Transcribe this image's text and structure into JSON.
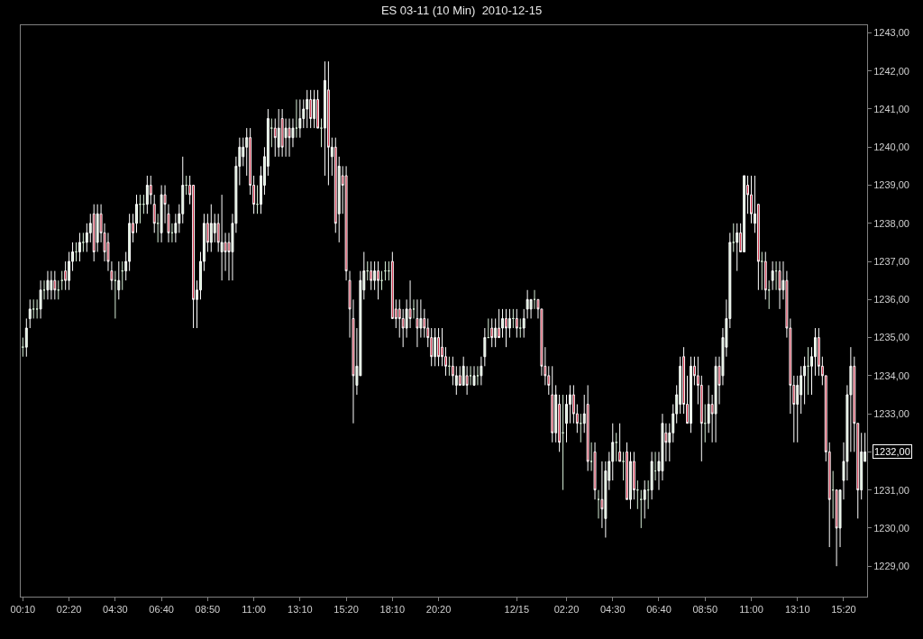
{
  "chart_data": {
    "type": "candlestick",
    "title": "ES 03-11 (10 Min)  2010-12-15",
    "categories": [
      "00:10",
      null,
      null,
      null,
      null,
      null,
      null,
      null,
      null,
      null,
      null,
      null,
      null,
      "02:20",
      null,
      null,
      null,
      null,
      null,
      null,
      null,
      null,
      null,
      null,
      null,
      null,
      "04:30",
      null,
      null,
      null,
      null,
      null,
      null,
      null,
      null,
      null,
      null,
      null,
      null,
      "06:40",
      null,
      null,
      null,
      null,
      null,
      null,
      null,
      null,
      null,
      null,
      null,
      null,
      "08:50",
      null,
      null,
      null,
      null,
      null,
      null,
      null,
      null,
      null,
      null,
      null,
      null,
      "11:00",
      null,
      null,
      null,
      null,
      null,
      null,
      null,
      null,
      null,
      null,
      null,
      null,
      "13:10",
      null,
      null,
      null,
      null,
      null,
      null,
      null,
      null,
      null,
      null,
      null,
      null,
      "15:20",
      null,
      null,
      null,
      null,
      null,
      null,
      null,
      null,
      null,
      null,
      null,
      null,
      "18:10",
      null,
      null,
      null,
      null,
      null,
      null,
      null,
      null,
      null,
      null,
      null,
      null,
      "20:20",
      null,
      null,
      null,
      null,
      null,
      null,
      null,
      null,
      null,
      null,
      null,
      null,
      null,
      null,
      null,
      null,
      null,
      null,
      null,
      null,
      null,
      "12/15",
      null,
      null,
      null,
      null,
      null,
      null,
      null,
      null,
      null,
      null,
      null,
      null,
      null,
      "02:20",
      null,
      null,
      null,
      null,
      null,
      null,
      null,
      null,
      null,
      null,
      null,
      null,
      "04:30",
      null,
      null,
      null,
      null,
      null,
      null,
      null,
      null,
      null,
      null,
      null,
      null,
      "06:40",
      null,
      null,
      null,
      null,
      null,
      null,
      null,
      null,
      null,
      null,
      null,
      null,
      "08:50",
      null,
      null,
      null,
      null,
      null,
      null,
      null,
      null,
      null,
      null,
      null,
      null,
      "11:00",
      null,
      null,
      null,
      null,
      null,
      null,
      null,
      null,
      null,
      null,
      null,
      null,
      "13:10",
      null,
      null,
      null,
      null,
      null,
      null,
      null,
      null,
      null,
      null,
      null,
      null,
      "15:20",
      null,
      null,
      null,
      null,
      null,
      null
    ],
    "ohlc": [
      [
        1234.75,
        1235.0,
        1234.5,
        1234.75
      ],
      [
        1234.75,
        1235.5,
        1234.5,
        1235.25
      ],
      [
        1235.5,
        1236.0,
        1235.25,
        1235.75
      ],
      [
        1235.75,
        1236.0,
        1235.5,
        1235.75
      ],
      [
        1235.75,
        1236.0,
        1235.5,
        1235.75
      ],
      [
        1235.75,
        1236.5,
        1235.5,
        1236.25
      ],
      [
        1236.25,
        1236.5,
        1236.0,
        1236.25
      ],
      [
        1236.25,
        1236.75,
        1236.0,
        1236.5
      ],
      [
        1236.25,
        1236.75,
        1236.0,
        1236.5
      ],
      [
        1236.5,
        1236.75,
        1236.0,
        1236.25
      ],
      [
        1236.25,
        1236.5,
        1236.0,
        1236.25
      ],
      [
        1236.5,
        1236.75,
        1236.25,
        1236.5
      ],
      [
        1236.75,
        1237.0,
        1236.25,
        1236.5
      ],
      [
        1236.5,
        1237.25,
        1236.25,
        1237.0
      ],
      [
        1237.0,
        1237.5,
        1236.75,
        1237.25
      ],
      [
        1237.25,
        1237.5,
        1237.0,
        1237.25
      ],
      [
        1237.25,
        1237.75,
        1237.0,
        1237.5
      ],
      [
        1237.5,
        1237.75,
        1237.25,
        1237.5
      ],
      [
        1237.5,
        1238.0,
        1237.25,
        1237.75
      ],
      [
        1237.75,
        1238.25,
        1237.5,
        1238.0
      ],
      [
        1238.25,
        1238.5,
        1237.0,
        1237.25
      ],
      [
        1237.5,
        1238.5,
        1237.25,
        1238.25
      ],
      [
        1238.25,
        1238.5,
        1237.5,
        1237.75
      ],
      [
        1237.75,
        1238.0,
        1237.0,
        1237.25
      ],
      [
        1237.5,
        1237.75,
        1236.75,
        1237.0
      ],
      [
        1236.75,
        1237.0,
        1236.25,
        1236.5
      ],
      [
        1236.5,
        1236.75,
        1235.5,
        1236.5
      ],
      [
        1236.25,
        1237.0,
        1236.0,
        1236.5
      ],
      [
        1236.75,
        1237.0,
        1236.25,
        1236.75
      ],
      [
        1236.75,
        1237.25,
        1236.5,
        1237.0
      ],
      [
        1237.0,
        1238.25,
        1236.75,
        1238.0
      ],
      [
        1238.0,
        1238.25,
        1237.5,
        1237.75
      ],
      [
        1238.0,
        1238.75,
        1237.75,
        1238.5
      ],
      [
        1238.5,
        1238.75,
        1238.0,
        1238.5
      ],
      [
        1238.5,
        1238.75,
        1238.25,
        1238.5
      ],
      [
        1238.5,
        1239.25,
        1238.25,
        1239.0
      ],
      [
        1239.0,
        1239.25,
        1238.5,
        1238.75
      ],
      [
        1238.5,
        1238.75,
        1237.75,
        1238.0
      ],
      [
        1238.0,
        1238.25,
        1237.5,
        1238.0
      ],
      [
        1237.75,
        1239.0,
        1237.5,
        1238.75
      ],
      [
        1238.75,
        1239.0,
        1238.0,
        1238.5
      ],
      [
        1238.25,
        1238.5,
        1237.5,
        1237.75
      ],
      [
        1237.75,
        1238.0,
        1237.5,
        1237.75
      ],
      [
        1237.75,
        1238.25,
        1237.5,
        1238.0
      ],
      [
        1238.0,
        1238.5,
        1237.75,
        1238.25
      ],
      [
        1238.25,
        1239.75,
        1238.0,
        1239.0
      ],
      [
        1239.0,
        1239.25,
        1238.75,
        1239.0
      ],
      [
        1239.0,
        1239.25,
        1238.5,
        1238.75
      ],
      [
        1239.0,
        1239.0,
        1235.25,
        1236.0
      ],
      [
        1236.0,
        1236.5,
        1235.25,
        1236.25
      ],
      [
        1236.25,
        1237.25,
        1236.0,
        1237.0
      ],
      [
        1237.0,
        1238.25,
        1236.75,
        1238.0
      ],
      [
        1238.0,
        1238.25,
        1237.25,
        1237.5
      ],
      [
        1237.5,
        1238.5,
        1237.25,
        1238.0
      ],
      [
        1237.75,
        1238.25,
        1237.5,
        1238.0
      ],
      [
        1238.0,
        1238.25,
        1237.25,
        1237.5
      ],
      [
        1237.25,
        1238.75,
        1236.5,
        1237.5
      ],
      [
        1237.5,
        1237.75,
        1236.75,
        1237.25
      ],
      [
        1237.5,
        1237.75,
        1236.5,
        1237.25
      ],
      [
        1237.25,
        1238.25,
        1236.5,
        1238.0
      ],
      [
        1238.0,
        1239.75,
        1237.75,
        1239.5
      ],
      [
        1239.5,
        1240.25,
        1239.0,
        1240.0
      ],
      [
        1239.75,
        1240.25,
        1239.5,
        1240.0
      ],
      [
        1240.0,
        1240.5,
        1239.25,
        1240.25
      ],
      [
        1240.25,
        1240.5,
        1238.75,
        1239.0
      ],
      [
        1239.0,
        1239.25,
        1238.25,
        1238.5
      ],
      [
        1238.5,
        1239.0,
        1238.25,
        1238.5
      ],
      [
        1238.5,
        1239.5,
        1238.25,
        1239.25
      ],
      [
        1239.0,
        1240.0,
        1238.75,
        1239.75
      ],
      [
        1239.5,
        1241.0,
        1239.25,
        1240.75
      ],
      [
        1240.5,
        1240.75,
        1240.0,
        1240.5
      ],
      [
        1240.5,
        1240.75,
        1239.75,
        1240.25
      ],
      [
        1240.0,
        1241.0,
        1239.75,
        1240.5
      ],
      [
        1240.75,
        1241.0,
        1239.75,
        1240.0
      ],
      [
        1240.25,
        1240.75,
        1239.75,
        1240.5
      ],
      [
        1240.5,
        1240.75,
        1239.75,
        1240.25
      ],
      [
        1240.25,
        1240.75,
        1240.0,
        1240.5
      ],
      [
        1240.5,
        1241.25,
        1240.25,
        1240.5
      ],
      [
        1240.5,
        1241.25,
        1240.25,
        1240.75
      ],
      [
        1240.75,
        1241.25,
        1240.5,
        1241.0
      ],
      [
        1241.0,
        1241.5,
        1240.5,
        1241.25
      ],
      [
        1241.25,
        1241.5,
        1240.5,
        1240.75
      ],
      [
        1240.75,
        1241.5,
        1240.5,
        1241.25
      ],
      [
        1241.25,
        1241.5,
        1240.5,
        1240.5
      ],
      [
        1240.5,
        1240.75,
        1240.0,
        1240.5
      ],
      [
        1240.5,
        1242.25,
        1239.25,
        1241.75
      ],
      [
        1241.5,
        1242.25,
        1239.0,
        1240.0
      ],
      [
        1239.75,
        1240.25,
        1239.25,
        1240.0
      ],
      [
        1240.0,
        1240.25,
        1237.75,
        1238.0
      ],
      [
        1238.25,
        1239.75,
        1237.5,
        1239.5
      ],
      [
        1239.25,
        1239.5,
        1238.25,
        1239.0
      ],
      [
        1239.25,
        1239.5,
        1236.5,
        1236.75
      ],
      [
        1236.5,
        1236.75,
        1235.0,
        1235.75
      ],
      [
        1235.5,
        1236.0,
        1232.75,
        1234.0
      ],
      [
        1233.75,
        1235.25,
        1233.5,
        1234.25
      ],
      [
        1234.0,
        1236.75,
        1234.0,
        1236.5
      ],
      [
        1236.25,
        1237.25,
        1236.0,
        1236.75
      ],
      [
        1236.75,
        1237.0,
        1236.5,
        1236.75
      ],
      [
        1236.75,
        1237.0,
        1236.25,
        1236.5
      ],
      [
        1236.5,
        1237.0,
        1236.25,
        1236.75
      ],
      [
        1236.75,
        1237.0,
        1236.0,
        1236.5
      ],
      [
        1236.5,
        1236.75,
        1236.25,
        1236.5
      ],
      [
        1236.75,
        1237.0,
        1236.5,
        1236.75
      ],
      [
        1236.75,
        1237.0,
        1236.5,
        1236.75
      ],
      [
        1237.0,
        1237.25,
        1235.5,
        1235.5
      ],
      [
        1235.75,
        1236.0,
        1235.25,
        1235.5
      ],
      [
        1235.75,
        1236.0,
        1235.0,
        1235.5
      ],
      [
        1235.5,
        1235.75,
        1234.75,
        1235.25
      ],
      [
        1235.25,
        1236.0,
        1235.0,
        1235.75
      ],
      [
        1235.75,
        1236.5,
        1235.25,
        1235.5
      ],
      [
        1235.75,
        1236.0,
        1235.5,
        1235.75
      ],
      [
        1235.5,
        1236.0,
        1234.75,
        1235.25
      ],
      [
        1235.25,
        1236.0,
        1235.0,
        1235.5
      ],
      [
        1235.5,
        1235.75,
        1235.0,
        1235.25
      ],
      [
        1235.25,
        1235.5,
        1234.75,
        1235.0
      ],
      [
        1235.0,
        1235.25,
        1234.25,
        1234.5
      ],
      [
        1234.5,
        1235.25,
        1234.25,
        1235.0
      ],
      [
        1235.0,
        1235.25,
        1234.25,
        1234.5
      ],
      [
        1234.75,
        1235.25,
        1234.25,
        1234.5
      ],
      [
        1234.5,
        1234.75,
        1234.0,
        1234.25
      ],
      [
        1234.25,
        1234.5,
        1234.0,
        1234.25
      ],
      [
        1234.25,
        1234.5,
        1233.75,
        1234.0
      ],
      [
        1233.75,
        1234.25,
        1233.5,
        1234.0
      ],
      [
        1234.0,
        1234.25,
        1233.75,
        1233.75
      ],
      [
        1233.75,
        1234.5,
        1233.75,
        1234.25
      ],
      [
        1234.0,
        1234.25,
        1233.5,
        1233.75
      ],
      [
        1234.0,
        1234.25,
        1233.75,
        1234.0
      ],
      [
        1233.75,
        1234.25,
        1233.75,
        1234.0
      ],
      [
        1234.0,
        1234.25,
        1233.75,
        1234.0
      ],
      [
        1234.0,
        1234.5,
        1233.75,
        1234.25
      ],
      [
        1234.5,
        1235.25,
        1234.25,
        1235.0
      ],
      [
        1235.0,
        1235.5,
        1235.0,
        1235.0
      ],
      [
        1235.25,
        1235.5,
        1234.75,
        1235.0
      ],
      [
        1235.0,
        1235.5,
        1234.75,
        1235.25
      ],
      [
        1235.25,
        1235.75,
        1235.0,
        1235.0
      ],
      [
        1235.25,
        1235.75,
        1235.0,
        1235.5
      ],
      [
        1235.5,
        1235.75,
        1234.75,
        1235.25
      ],
      [
        1235.25,
        1235.75,
        1235.0,
        1235.5
      ],
      [
        1235.5,
        1235.75,
        1235.25,
        1235.5
      ],
      [
        1235.5,
        1235.75,
        1235.0,
        1235.25
      ],
      [
        1235.25,
        1235.5,
        1235.0,
        1235.25
      ],
      [
        1235.25,
        1235.75,
        1235.0,
        1235.5
      ],
      [
        1235.75,
        1236.25,
        1235.5,
        1236.0
      ],
      [
        1235.75,
        1236.0,
        1235.5,
        1236.0
      ],
      [
        1236.0,
        1236.25,
        1235.75,
        1236.0
      ],
      [
        1236.0,
        1236.0,
        1235.5,
        1235.75
      ],
      [
        1235.75,
        1235.75,
        1234.0,
        1234.25
      ],
      [
        1234.25,
        1234.75,
        1233.75,
        1234.0
      ],
      [
        1234.0,
        1234.25,
        1233.5,
        1233.75
      ],
      [
        1233.5,
        1234.25,
        1232.25,
        1232.5
      ],
      [
        1232.5,
        1233.75,
        1232.25,
        1233.5
      ],
      [
        1233.25,
        1233.5,
        1232.0,
        1232.25
      ],
      [
        1232.5,
        1233.5,
        1231.0,
        1232.5
      ],
      [
        1232.75,
        1233.5,
        1232.25,
        1233.25
      ],
      [
        1233.25,
        1233.75,
        1232.75,
        1233.5
      ],
      [
        1233.5,
        1233.75,
        1232.75,
        1233.0
      ],
      [
        1233.0,
        1233.25,
        1232.5,
        1232.75
      ],
      [
        1232.75,
        1233.0,
        1232.25,
        1232.75
      ],
      [
        1232.75,
        1233.5,
        1232.5,
        1233.0
      ],
      [
        1233.25,
        1233.75,
        1231.5,
        1231.75
      ],
      [
        1231.75,
        1232.25,
        1231.5,
        1231.75
      ],
      [
        1232.0,
        1232.25,
        1230.75,
        1231.0
      ],
      [
        1230.75,
        1231.0,
        1230.25,
        1230.75
      ],
      [
        1230.75,
        1231.75,
        1230.0,
        1230.5
      ],
      [
        1230.25,
        1231.75,
        1229.75,
        1231.5
      ],
      [
        1231.25,
        1232.0,
        1231.0,
        1231.75
      ],
      [
        1231.75,
        1232.75,
        1231.25,
        1232.25
      ],
      [
        1232.25,
        1232.5,
        1231.75,
        1232.25
      ],
      [
        1232.0,
        1232.75,
        1231.75,
        1231.75
      ],
      [
        1231.75,
        1232.0,
        1231.25,
        1231.75
      ],
      [
        1232.0,
        1232.25,
        1230.75,
        1230.75
      ],
      [
        1230.75,
        1232.0,
        1230.5,
        1231.75
      ],
      [
        1231.75,
        1232.0,
        1230.75,
        1231.0
      ],
      [
        1231.0,
        1231.25,
        1230.5,
        1231.0
      ],
      [
        1230.75,
        1231.0,
        1230.0,
        1230.75
      ],
      [
        1230.75,
        1231.25,
        1230.25,
        1231.0
      ],
      [
        1231.0,
        1231.25,
        1230.5,
        1231.0
      ],
      [
        1231.0,
        1232.0,
        1230.75,
        1231.75
      ],
      [
        1231.5,
        1232.0,
        1231.25,
        1231.5
      ],
      [
        1231.5,
        1232.0,
        1231.0,
        1231.75
      ],
      [
        1231.5,
        1233.0,
        1231.25,
        1232.75
      ],
      [
        1232.5,
        1232.75,
        1231.75,
        1232.25
      ],
      [
        1232.25,
        1232.75,
        1231.75,
        1232.5
      ],
      [
        1232.5,
        1233.25,
        1232.25,
        1233.0
      ],
      [
        1233.0,
        1233.75,
        1232.75,
        1233.5
      ],
      [
        1233.25,
        1234.5,
        1233.0,
        1234.25
      ],
      [
        1234.5,
        1234.75,
        1233.0,
        1233.25
      ],
      [
        1233.25,
        1234.0,
        1232.75,
        1232.75
      ],
      [
        1232.75,
        1234.5,
        1232.5,
        1234.25
      ],
      [
        1234.25,
        1234.5,
        1233.75,
        1234.0
      ],
      [
        1234.0,
        1234.5,
        1233.25,
        1233.75
      ],
      [
        1233.75,
        1234.0,
        1231.75,
        1232.75
      ],
      [
        1232.75,
        1233.25,
        1232.25,
        1232.75
      ],
      [
        1232.75,
        1233.75,
        1232.5,
        1233.25
      ],
      [
        1233.25,
        1233.5,
        1232.25,
        1233.0
      ],
      [
        1233.0,
        1234.5,
        1232.25,
        1234.25
      ],
      [
        1234.25,
        1234.5,
        1233.25,
        1233.75
      ],
      [
        1234.0,
        1235.25,
        1233.75,
        1235.0
      ],
      [
        1234.75,
        1236.0,
        1234.5,
        1235.5
      ],
      [
        1235.5,
        1237.75,
        1235.25,
        1237.5
      ],
      [
        1237.5,
        1238.0,
        1237.25,
        1237.5
      ],
      [
        1237.5,
        1238.0,
        1236.75,
        1237.75
      ],
      [
        1237.75,
        1238.0,
        1237.25,
        1237.25
      ],
      [
        1237.25,
        1239.25,
        1237.25,
        1239.25
      ],
      [
        1239.0,
        1239.25,
        1238.25,
        1238.75
      ],
      [
        1238.75,
        1239.25,
        1238.0,
        1238.25
      ],
      [
        1238.0,
        1239.25,
        1237.75,
        1238.25
      ],
      [
        1238.5,
        1238.5,
        1236.25,
        1237.0
      ],
      [
        1237.0,
        1237.25,
        1236.25,
        1237.0
      ],
      [
        1237.0,
        1237.25,
        1236.0,
        1236.25
      ],
      [
        1236.25,
        1236.5,
        1235.75,
        1236.25
      ],
      [
        1236.5,
        1237.0,
        1236.25,
        1236.75
      ],
      [
        1236.75,
        1237.0,
        1236.25,
        1236.75
      ],
      [
        1236.75,
        1237.0,
        1235.75,
        1236.25
      ],
      [
        1236.25,
        1237.0,
        1236.0,
        1236.5
      ],
      [
        1236.5,
        1236.75,
        1235.0,
        1235.25
      ],
      [
        1235.25,
        1235.5,
        1233.0,
        1233.75
      ],
      [
        1233.75,
        1234.0,
        1232.25,
        1233.25
      ],
      [
        1233.25,
        1234.0,
        1232.25,
        1233.75
      ],
      [
        1233.5,
        1234.25,
        1233.0,
        1234.0
      ],
      [
        1234.0,
        1234.5,
        1233.25,
        1234.25
      ],
      [
        1234.25,
        1234.75,
        1233.5,
        1234.25
      ],
      [
        1234.25,
        1234.75,
        1233.5,
        1234.5
      ],
      [
        1234.5,
        1235.25,
        1234.0,
        1235.0
      ],
      [
        1235.0,
        1235.25,
        1234.0,
        1234.25
      ],
      [
        1234.25,
        1234.5,
        1233.75,
        1234.0
      ],
      [
        1234.0,
        1234.0,
        1231.75,
        1232.0
      ],
      [
        1232.0,
        1232.25,
        1229.5,
        1230.75
      ],
      [
        1231.0,
        1231.5,
        1230.25,
        1231.0
      ],
      [
        1231.0,
        1231.0,
        1229.0,
        1230.0
      ],
      [
        1230.0,
        1231.0,
        1229.5,
        1231.0
      ],
      [
        1231.25,
        1232.25,
        1230.75,
        1231.75
      ],
      [
        1231.75,
        1233.75,
        1231.25,
        1233.5
      ],
      [
        1233.5,
        1234.75,
        1232.0,
        1234.25
      ],
      [
        1234.25,
        1234.5,
        1232.0,
        1232.75
      ],
      [
        1232.75,
        1232.75,
        1230.25,
        1231.0
      ],
      [
        1231.0,
        1232.5,
        1230.75,
        1232.0
      ],
      [
        1231.75,
        1232.5,
        1231.75,
        1232.0
      ]
    ],
    "colors": [
      "#d6eed6",
      "#d6eed6",
      "#d6eed6",
      "#d6eed6",
      "#d6eed6",
      "#d6eed6",
      "#d6eed6",
      "#d6eed6",
      "#d6eed6",
      "#c8102e",
      "#d6eed6",
      "#d6eed6",
      "#c8102e",
      "#d6eed6",
      "#d6eed6",
      "#d6eed6",
      "#d6eed6",
      "#d6eed6",
      "#d6eed6",
      "#d6eed6",
      "#c8102e",
      "#d6eed6",
      "#c8102e",
      "#c8102e",
      "#c8102e",
      "#c8102e",
      "#d6eed6",
      "#d6eed6",
      "#d6eed6",
      "#d6eed6",
      "#d6eed6",
      "#c8102e",
      "#d6eed6",
      "#d6eed6",
      "#d6eed6",
      "#d6eed6",
      "#c8102e",
      "#c8102e",
      "#d6eed6",
      "#d6eed6",
      "#c8102e",
      "#c8102e",
      "#d6eed6",
      "#d6eed6",
      "#d6eed6",
      "#d6eed6",
      "#d6eed6",
      "#c8102e",
      "#c8102e",
      "#d6eed6",
      "#d6eed6",
      "#d6eed6",
      "#c8102e",
      "#d6eed6",
      "#d6eed6",
      "#c8102e",
      "#d6eed6",
      "#c8102e",
      "#c8102e",
      "#d6eed6",
      "#d6eed6",
      "#d6eed6",
      "#d6eed6",
      "#d6eed6",
      "#c8102e",
      "#c8102e",
      "#d6eed6",
      "#d6eed6",
      "#d6eed6",
      "#d6eed6",
      "#d6eed6",
      "#c8102e",
      "#d6eed6",
      "#c8102e",
      "#d6eed6",
      "#c8102e",
      "#d6eed6",
      "#d6eed6",
      "#d6eed6",
      "#d6eed6",
      "#d6eed6",
      "#c8102e",
      "#d6eed6",
      "#c8102e",
      "#d6eed6",
      "#d6eed6",
      "#c8102e",
      "#d6eed6",
      "#c8102e",
      "#d6eed6",
      "#c8102e",
      "#c8102e",
      "#c8102e",
      "#c8102e",
      "#d6eed6",
      "#d6eed6",
      "#d6eed6",
      "#d6eed6",
      "#c8102e",
      "#d6eed6",
      "#c8102e",
      "#d6eed6",
      "#d6eed6",
      "#d6eed6",
      "#c8102e",
      "#c8102e",
      "#c8102e",
      "#c8102e",
      "#d6eed6",
      "#c8102e",
      "#d6eed6",
      "#c8102e",
      "#d6eed6",
      "#c8102e",
      "#c8102e",
      "#c8102e",
      "#d6eed6",
      "#c8102e",
      "#c8102e",
      "#c8102e",
      "#d6eed6",
      "#c8102e",
      "#d6eed6",
      "#c8102e",
      "#d6eed6",
      "#c8102e",
      "#d6eed6",
      "#d6eed6",
      "#d6eed6",
      "#d6eed6",
      "#d6eed6",
      "#d6eed6",
      "#c8102e",
      "#d6eed6",
      "#c8102e",
      "#d6eed6",
      "#c8102e",
      "#d6eed6",
      "#d6eed6",
      "#c8102e",
      "#d6eed6",
      "#d6eed6",
      "#d6eed6",
      "#d6eed6",
      "#d6eed6",
      "#c8102e",
      "#c8102e",
      "#c8102e",
      "#c8102e",
      "#c8102e",
      "#d6eed6",
      "#c8102e",
      "#d6eed6",
      "#d6eed6",
      "#d6eed6",
      "#c8102e",
      "#c8102e",
      "#d6eed6",
      "#d6eed6",
      "#c8102e",
      "#d6eed6",
      "#c8102e",
      "#d6eed6",
      "#c8102e",
      "#d6eed6",
      "#d6eed6",
      "#d6eed6",
      "#d6eed6",
      "#c8102e",
      "#d6eed6",
      "#c8102e",
      "#d6eed6",
      "#c8102e",
      "#d6eed6",
      "#d6eed6",
      "#d6eed6",
      "#d6eed6",
      "#d6eed6",
      "#d6eed6",
      "#d6eed6",
      "#d6eed6",
      "#c8102e",
      "#d6eed6",
      "#d6eed6",
      "#d6eed6",
      "#d6eed6",
      "#c8102e",
      "#c8102e",
      "#d6eed6",
      "#c8102e",
      "#c8102e",
      "#c8102e",
      "#d6eed6",
      "#d6eed6",
      "#c8102e",
      "#d6eed6",
      "#c8102e",
      "#d6eed6",
      "#d6eed6",
      "#d6eed6",
      "#d6eed6",
      "#d6eed6",
      "#c8102e",
      "#d6eed6",
      "#c8102e",
      "#c8102e",
      "#d6eed6",
      "#c8102e",
      "#d6eed6",
      "#c8102e",
      "#d6eed6",
      "#d6eed6",
      "#d6eed6",
      "#c8102e",
      "#d6eed6",
      "#c8102e",
      "#c8102e",
      "#c8102e",
      "#d6eed6",
      "#d6eed6",
      "#d6eed6",
      "#d6eed6",
      "#d6eed6",
      "#d6eed6",
      "#c8102e",
      "#c8102e",
      "#c8102e",
      "#c8102e",
      "#d6eed6",
      "#c8102e",
      "#d6eed6",
      "#d6eed6",
      "#d6eed6",
      "#d6eed6",
      "#c8102e",
      "#c8102e",
      "#d6eed6",
      "#d6eed6"
    ],
    "ylim": [
      1228.2,
      1243.2
    ],
    "yticks": [
      {
        "value": 1229,
        "label": "1229,00"
      },
      {
        "value": 1230,
        "label": "1230,00"
      },
      {
        "value": 1231,
        "label": "1231,00"
      },
      {
        "value": 1232,
        "label": null
      },
      {
        "value": 1233,
        "label": "1233,00"
      },
      {
        "value": 1234,
        "label": "1234,00"
      },
      {
        "value": 1235,
        "label": "1235,00"
      },
      {
        "value": 1236,
        "label": "1236,00"
      },
      {
        "value": 1237,
        "label": "1237,00"
      },
      {
        "value": 1238,
        "label": "1238,00"
      },
      {
        "value": 1239,
        "label": "1239,00"
      },
      {
        "value": 1240,
        "label": "1240,00"
      },
      {
        "value": 1241,
        "label": "1241,00"
      },
      {
        "value": 1242,
        "label": "1242,00"
      },
      {
        "value": 1243,
        "label": "1243,00"
      }
    ],
    "annotations": [
      "1232,00"
    ],
    "grid": false
  }
}
